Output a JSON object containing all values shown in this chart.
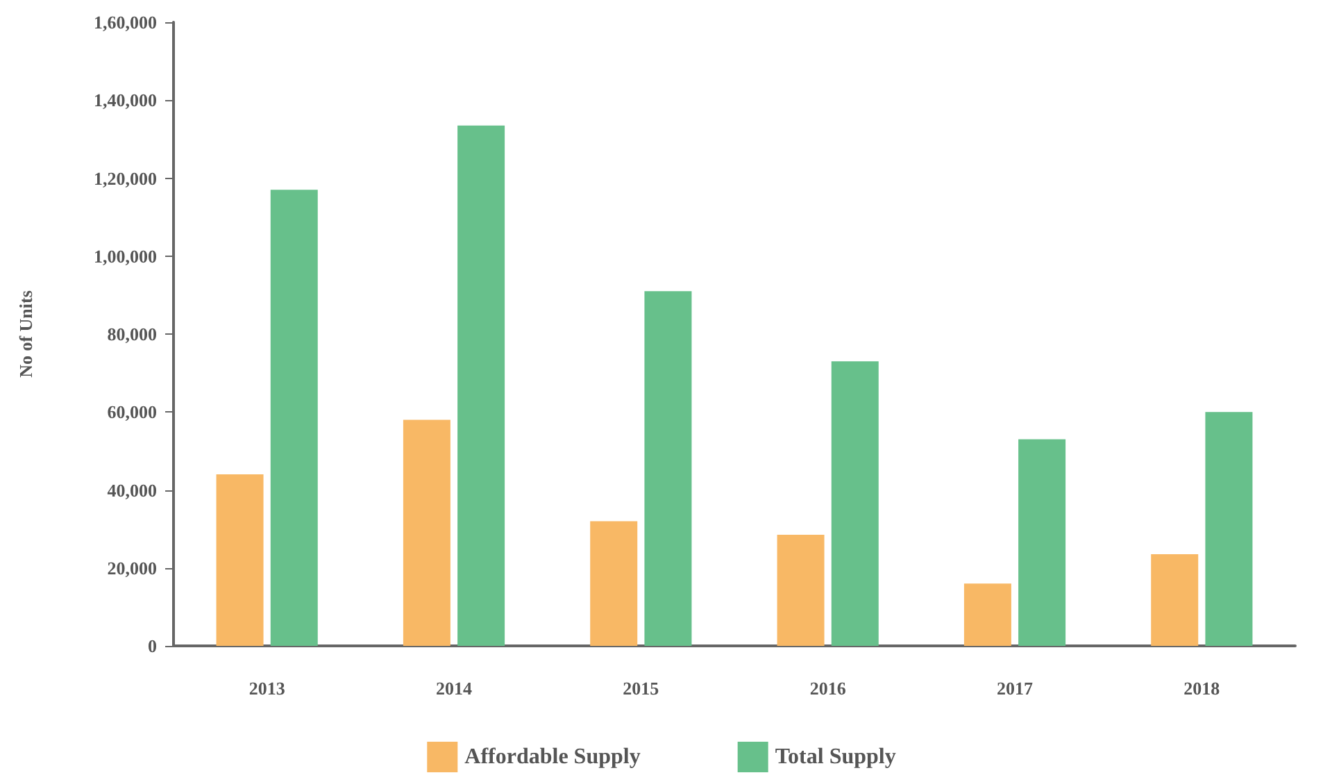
{
  "chart_data": {
    "type": "bar",
    "ylabel": "No of Units",
    "categories": [
      "2013",
      "2014",
      "2015",
      "2016",
      "2017",
      "2018"
    ],
    "series": [
      {
        "name": "Affordable Supply",
        "color": "#f8b865",
        "values": [
          44000,
          58000,
          32000,
          28500,
          16000,
          23500
        ]
      },
      {
        "name": "Total Supply",
        "color": "#67c08b",
        "values": [
          117000,
          133500,
          91000,
          73000,
          53000,
          60000
        ]
      }
    ],
    "ylim": [
      0,
      160000
    ],
    "yticks": [
      0,
      {
        "value": 20000,
        "label": "20,000"
      },
      {
        "value": 40000,
        "label": "40,000"
      },
      {
        "value": 60000,
        "label": "60,000"
      },
      {
        "value": 80000,
        "label": "80,000"
      },
      {
        "value": 100000,
        "label": "1,00,000"
      },
      {
        "value": 120000,
        "label": "1,20,000"
      },
      {
        "value": 140000,
        "label": "1,40,000"
      },
      {
        "value": 160000,
        "label": "1,60,000"
      }
    ],
    "grid": false,
    "legend": "bottom"
  }
}
